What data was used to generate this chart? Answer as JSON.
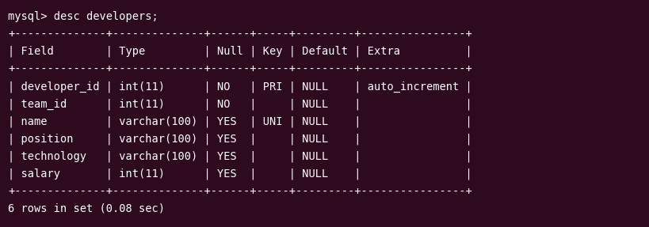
{
  "bg_color": "#2d0a1e",
  "text_color": "#ffffff",
  "font_family": "monospace",
  "lines": [
    "mysql> desc developers;",
    "+--------------+--------------+------+-----+---------+----------------+",
    "| Field        | Type         | Null | Key | Default | Extra          |",
    "+--------------+--------------+------+-----+---------+----------------+",
    "| developer_id | int(11)      | NO   | PRI | NULL    | auto_increment |",
    "| team_id      | int(11)      | NO   |     | NULL    |                |",
    "| name         | varchar(100) | YES  | UNI | NULL    |                |",
    "| position     | varchar(100) | YES  |     | NULL    |                |",
    "| technology   | varchar(100) | YES  |     | NULL    |                |",
    "| salary       | int(11)      | YES  |     | NULL    |                |",
    "+--------------+--------------+------+-----+---------+----------------+",
    "6 rows in set (0.08 sec)"
  ],
  "sep_indices": [
    1,
    3,
    10
  ],
  "font_size": 9.8,
  "fig_width": 8.2,
  "fig_height": 2.87,
  "dpi": 100
}
